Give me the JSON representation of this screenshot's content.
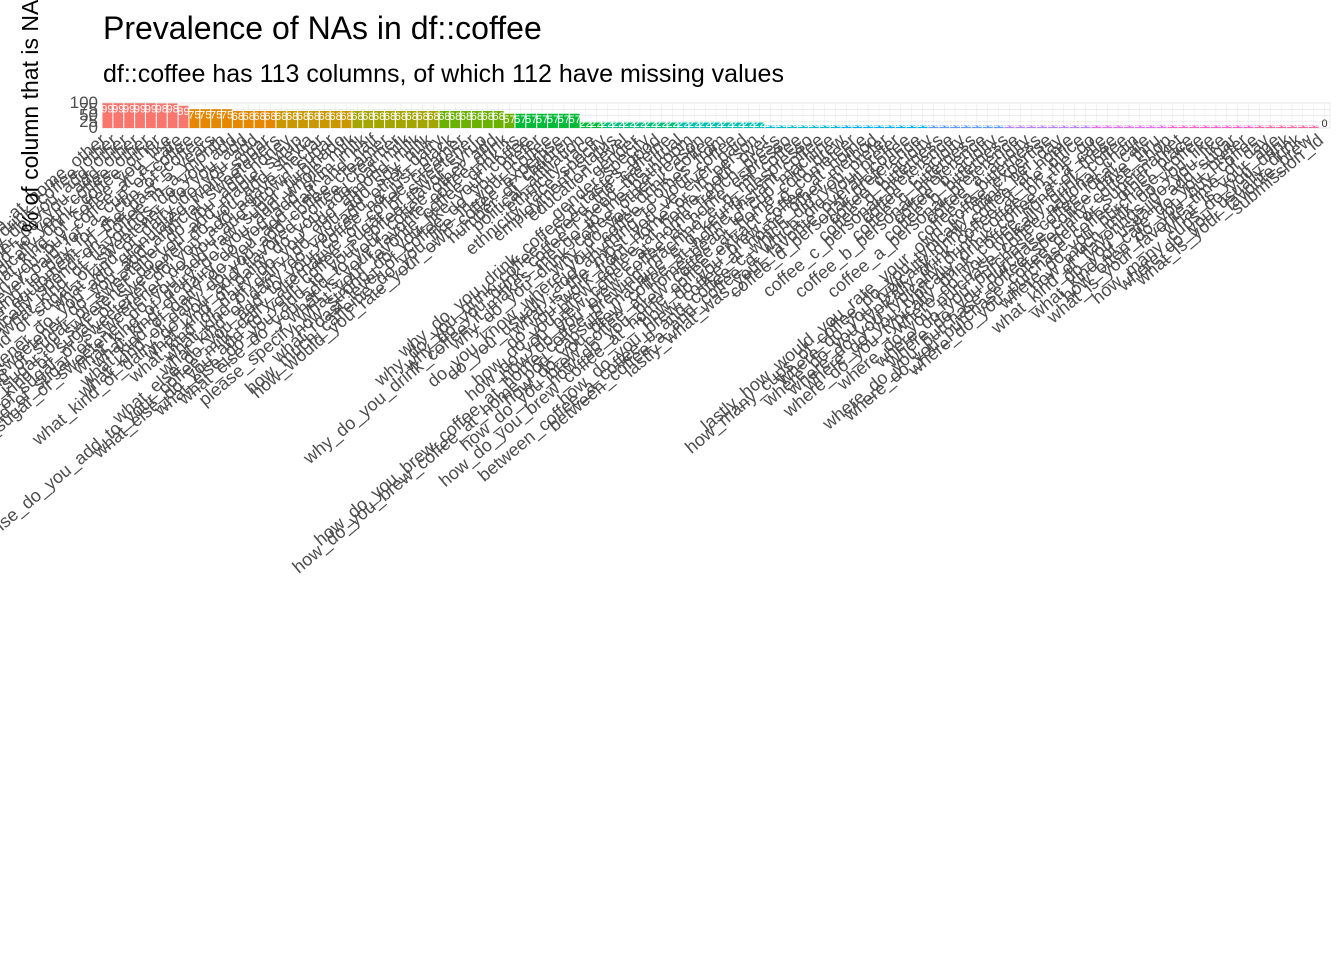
{
  "chart_data": {
    "type": "bar",
    "title": "Prevalence of NAs in df::coffee",
    "subtitle": "df::coffee has 113 columns, of which 112 have missing values",
    "ylabel": "% of column that is NA",
    "xlabel": "",
    "ylim": [
      0,
      100
    ],
    "yticks": [
      0,
      25,
      50,
      75,
      100
    ],
    "grid": true,
    "legend": "none",
    "categories": [
      "how_do_you_brew_coffee_at_home_other",
      "why_do_you_drink_coffee_other",
      "what_kind_of_dairy_do_you_add_other",
      "what_kind_of_sugar_or_sweetener_do_you_add_other",
      "what_else_do_you_add_to_your_coffee_other",
      "where_do_you_typically_drink_coffee_other",
      "before_todays_tasting_which_of_the_following_best_described_what_kind_of_coffee_you_like",
      "do_you_feel_like_you_re_getting_good_value_for_your_money_when_you_buy_coffee_at_a_cafe",
      "what_is_the_most_you_ve_ever_paid_for_a_cup_of_coffee",
      "what_is_the_most_you_d_ever_be_willing_to_pay_for_a_cup_of_coffee",
      "approximately_how_much_have_you_spent_on_coffee_equipment_in_the_past_5_years",
      "in_total_much_money_do_you_typically_spend_on_coffee_in_a_month",
      "what_kind_of_flavorings_do_you_add",
      "what_kind_of_sugar_or_sweetener_do_you_add",
      "what_kind_of_dairy_do_you_add",
      "what_kind_of_sugar_or_sweetener_do_you_add_granulated_white_sugar",
      "what_kind_of_sugar_or_sweetener_do_you_add_artificial_sweeteners",
      "what_kind_of_sugar_or_sweetener_do_you_add_honey",
      "what_kind_of_sugar_or_sweetener_do_you_add_maple_syrup",
      "what_kind_of_sugar_or_sweetener_do_you_add_stevia",
      "what_kind_of_sugar_or_sweetener_do_you_add_agave_nectar",
      "what_kind_of_sugar_or_sweetener_do_you_add_brown_sugar",
      "what_kind_of_sugar_or_sweetener_do_you_add_raw_sugar_turbinado",
      "what_kind_of_dairy_do_you_add_whole_milk",
      "what_kind_of_dairy_do_you_add_skim_milk",
      "what_kind_of_dairy_do_you_add_half_and_half",
      "what_kind_of_dairy_do_you_add_coffee_creamer",
      "what_kind_of_dairy_do_you_add_flavored_coffee_creamer",
      "what_kind_of_dairy_do_you_add_oat_milk",
      "what_kind_of_dairy_do_you_add_almond_milk",
      "what_kind_of_dairy_do_you_add_soy_milk",
      "what_kind_of_dairy_do_you_add_other_dairy",
      "what_else_do_you_add_to_your_coffee_no_just_black",
      "what_else_do_you_add_to_your_coffee_milk_dairy_alternative_or_coffee_creamer",
      "what_else_do_you_add_to_your_coffee_sugar_or_sweetener",
      "what_else_do_you_add_to_your_coffee_flavor_syrup",
      "what_else_do_you_add_to_your_coffee_other_add",
      "what_is_your_favorite_coffee_drink",
      "please_specify_what_your_favorite_coffee_drink_is",
      "how_strong_do_you_like_your_coffee",
      "what_roast_level_of_coffee_do_you_prefer",
      "how_much_caffeine_do_you_like_in_your_coffee",
      "how_would_you_rate_your_own_coffee_expertise",
      "number_of_children",
      "political_affiliation",
      "ethnicity_race",
      "ethnicity_race_specify",
      "employment_status",
      "education_level",
      "gender",
      "gender_specify",
      "why_do_you_drink_coffee_it_tastes_good",
      "why_do_you_drink_coffee_i_need_the_caffeine",
      "why_do_you_drink_coffee_i_need_the_ritual",
      "why_do_you_drink_coffee_it_makes_me_go_to_the_bathroom",
      "why_do_you_drink_coffee_other_reason",
      "why_do_you_drink_coffee",
      "do_you_know_where_your_coffee_comes_from",
      "do_you_usually_add_anything_to_your_coffee",
      "what_is_the_most_you_ve_ever_paid",
      "do_you_work_from_home_or_in_person",
      "how_do_you_brew_coffee_at_home_pour_over",
      "how_do_you_brew_coffee_at_home_french_press",
      "how_do_you_brew_coffee_at_home_espresso",
      "how_do_you_brew_coffee_at_home_coffee_brewing_machine_e_g_mr_coffee",
      "how_do_you_brew_coffee_at_home_pod_capsule_machine_e_g_keurig_nespresso",
      "how_do_you_brew_coffee_at_home_instant_coffee",
      "how_do_you_brew_coffee_at_home_bean_to_cup_machine",
      "how_do_you_brew_coffee_at_home_cold_brew",
      "how_do_you_brew_coffee_at_home_coffee_extract_e_g_cometeer",
      "how_do_you_brew_coffee_at_home",
      "how_do_you_brew_coffee_at_home_other_method",
      "between_coffee_a_coffee_b_and_coffee_c_which_did_you_prefer",
      "between_coffee_a_and_coffee_d_which_did_you_prefer",
      "lastly_what_was_your_favorite_overall_coffee",
      "coffee_d_personal_preference",
      "coffee_d_acidity",
      "coffee_d_bitterness",
      "coffee_c_personal_preference",
      "coffee_c_acidity",
      "coffee_c_bitterness",
      "coffee_b_personal_preference",
      "coffee_b_acidity",
      "coffee_b_bitterness",
      "coffee_a_personal_preference",
      "coffee_a_acidity",
      "coffee_a_bitterness",
      "lastly_how_would_you_rate_your_own_coffee_expertise",
      "how_many_cups_of_coffee_do_you_typically_drink_per_day",
      "where_do_you_typically_drink_coffee_at_home",
      "where_do_you_typically_drink_coffee_at_the_office",
      "where_do_you_typically_drink_coffee_on_the_go",
      "where_do_you_typically_drink_coffee_at_a_cafe",
      "where_do_you_typically_drink_coffee_none_of_these",
      "where_do_you_typically_drink_coffee",
      "where_do_you_purchase_coffee_national_chain",
      "where_do_you_purchase_coffee_local_cafe",
      "where_do_you_purchase_coffee_drive_thru",
      "where_do_you_purchase_coffee_specialty_coffee_shop",
      "where_do_you_purchase_coffee_deli_or_supermarket",
      "where_do_you_purchase_coffee_other_place",
      "where_do_you_purchase_coffee",
      "how_much_milk_do_you_like",
      "what_kind_of_flavorings_do_you_like",
      "do_you_usually_add_sugar",
      "what_kind_of_cafe_do_you_prefer",
      "how_often_do_you_buy_coffee",
      "what_is_your_favorite_time_of_day",
      "what_is_your_age",
      "how_many_cups_do_you_drink",
      "where_do_you_usually_drink",
      "what_is_your_favorite_brew",
      "submission_id"
    ],
    "values": [
      99,
      99,
      99,
      99,
      99,
      98,
      98,
      89,
      75,
      75,
      75,
      75,
      68,
      68,
      68,
      68,
      68,
      68,
      68,
      68,
      68,
      68,
      68,
      68,
      68,
      68,
      68,
      68,
      68,
      68,
      68,
      68,
      68,
      68,
      68,
      68,
      68,
      57,
      57,
      57,
      57,
      57,
      57,
      57,
      22,
      22,
      22,
      22,
      22,
      22,
      22,
      22,
      22,
      22,
      22,
      22,
      22,
      22,
      22,
      22,
      22,
      10,
      10,
      10,
      10,
      10,
      10,
      10,
      10,
      10,
      10,
      10,
      10,
      10,
      10,
      10,
      10,
      10,
      10,
      10,
      10,
      10,
      10,
      10,
      10,
      10,
      10,
      10,
      10,
      10,
      10,
      10,
      10,
      10,
      10,
      10,
      10,
      10,
      10,
      10,
      10,
      10,
      10,
      10,
      10,
      10,
      10,
      10,
      10,
      10,
      10,
      10,
      0
    ],
    "data_labels": [
      "99",
      "99",
      "99",
      "99",
      "99",
      "98",
      "98",
      "89",
      "75",
      "75",
      "75",
      "75",
      "68",
      "68",
      "68",
      "68",
      "68",
      "68",
      "68",
      "68",
      "68",
      "68",
      "68",
      "68",
      "68",
      "68",
      "68",
      "68",
      "68",
      "68",
      "68",
      "68",
      "68",
      "68",
      "68",
      "68",
      "68",
      "57",
      "57",
      "57",
      "57",
      "57",
      "57",
      "57",
      "22",
      "22",
      "22",
      "22",
      "22",
      "22",
      "22",
      "22",
      "22",
      "22",
      "22",
      "22",
      "22",
      "22",
      "22",
      "22",
      "22",
      "10",
      "10",
      "10",
      "10",
      "10",
      "10",
      "10",
      "10",
      "10",
      "10",
      "10",
      "10",
      "10",
      "10",
      "10",
      "10",
      "10",
      "10",
      "10",
      "10",
      "10",
      "10",
      "10",
      "10",
      "10",
      "10",
      "10",
      "10",
      "10",
      "10",
      "10",
      "10",
      "10",
      "10",
      "10",
      "10",
      "10",
      "10",
      "10",
      "10",
      "10",
      "10",
      "10",
      "10",
      "10",
      "10",
      "10",
      "10",
      "10",
      "10",
      "10",
      "0"
    ],
    "colors": [
      "#F8766D",
      "#E58700",
      "#C99800",
      "#A3A500",
      "#6BB100",
      "#00BA38",
      "#00BF7D",
      "#00C0AF",
      "#00BCD8",
      "#00B0F6",
      "#619CFF",
      "#B983FF",
      "#E76BF3",
      "#FD61D1",
      "#FF67A4"
    ],
    "grid_color": "#d9d9d9"
  }
}
